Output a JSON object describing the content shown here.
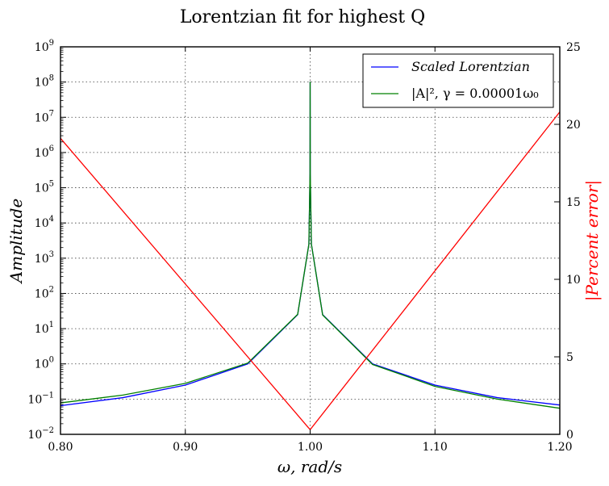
{
  "chart_data": {
    "type": "line",
    "title": "Lorentzian fit for highest Q",
    "xlabel": "ω, rad/s",
    "ylabel_left": "Amplitude",
    "ylabel_right": "|Percent error|",
    "xlim": [
      0.8,
      1.2
    ],
    "ylim_left_log10": [
      -2,
      9
    ],
    "ylim_right": [
      0,
      25
    ],
    "yscale_left": "log",
    "grid": true,
    "legend_position": "top-right",
    "x_ticks": [
      "0.80",
      "0.90",
      "1.00",
      "1.10",
      "1.20"
    ],
    "y_left_tick_mantissa": "10",
    "y_left_tick_exponents": [
      "−2",
      "−1",
      "0",
      "1",
      "2",
      "3",
      "4",
      "5",
      "6",
      "7",
      "8",
      "9"
    ],
    "y_right_ticks": [
      "0",
      "5",
      "10",
      "15",
      "20",
      "25"
    ],
    "colors": {
      "scaled": "#0000ff",
      "numeric": "#008000",
      "error": "#ff0000",
      "right_axis_label": "#ff0000"
    },
    "series": [
      {
        "name": "Scaled Lorentzian",
        "axis": "left",
        "x": [
          0.8,
          0.85,
          0.9,
          0.95,
          0.99,
          0.999,
          0.9999,
          1.0,
          1.0001,
          1.001,
          1.01,
          1.05,
          1.1,
          1.15,
          1.2
        ],
        "y": [
          0.065,
          0.11,
          0.25,
          1.0,
          25,
          2500,
          250000,
          100000000,
          250000,
          2500,
          25,
          1.0,
          0.25,
          0.11,
          0.068
        ]
      },
      {
        "name": "|A|², γ = 0.00001ω₀",
        "axis": "left",
        "x": [
          0.8,
          0.85,
          0.9,
          0.95,
          0.99,
          0.999,
          0.9999,
          1.0,
          1.0001,
          1.001,
          1.01,
          1.05,
          1.1,
          1.15,
          1.2
        ],
        "y": [
          0.078,
          0.13,
          0.28,
          1.05,
          25.5,
          2500,
          250000,
          100000000,
          250000,
          2500,
          24.5,
          0.96,
          0.23,
          0.1,
          0.055
        ]
      },
      {
        "name": "|Percent error|",
        "axis": "right",
        "x": [
          0.8,
          1.0,
          1.2
        ],
        "y": [
          19.1,
          0.3,
          20.8
        ]
      }
    ]
  }
}
